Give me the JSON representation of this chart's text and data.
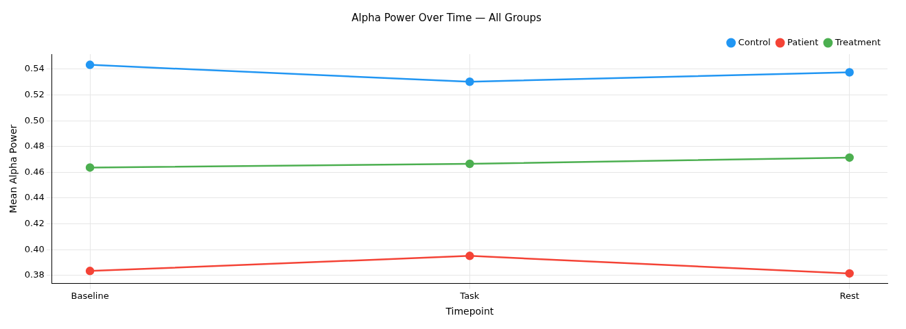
{
  "chart_data": {
    "type": "line",
    "title": "Alpha Power Over Time — All Groups",
    "xlabel": "Timepoint",
    "ylabel": "Mean Alpha Power",
    "categories": [
      "Baseline",
      "Task",
      "Rest"
    ],
    "series": [
      {
        "name": "Control",
        "color": "#2196f3",
        "values": [
          0.5434,
          0.5303,
          0.5376
        ]
      },
      {
        "name": "Patient",
        "color": "#f44336",
        "values": [
          0.3834,
          0.3951,
          0.3815
        ]
      },
      {
        "name": "Treatment",
        "color": "#4caf50",
        "values": [
          0.4637,
          0.4666,
          0.4714
        ]
      }
    ],
    "ylim": [
      0.3737,
      0.5517
    ],
    "yticks": [
      0.38,
      {
        "value": 0.4,
        "label": "0.40"
      },
      0.42,
      0.44,
      0.46,
      0.48,
      {
        "value": 0.5,
        "label": "0.50"
      },
      0.52,
      0.54
    ],
    "grid": true,
    "legend": "top right",
    "marker": "circle",
    "line_style": "solid"
  }
}
